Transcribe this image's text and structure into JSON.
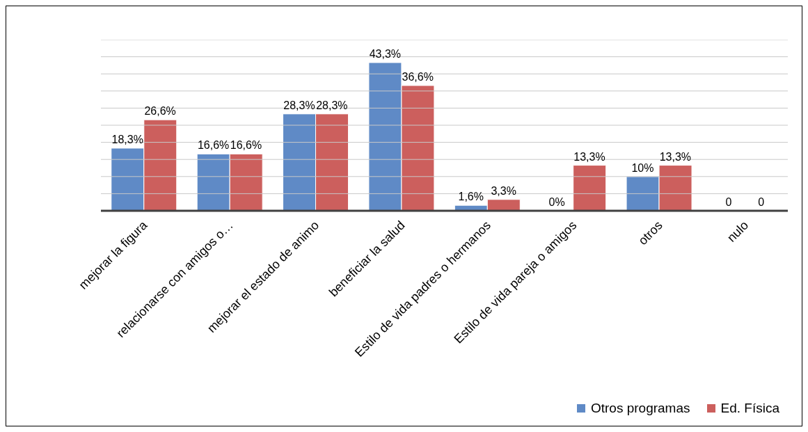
{
  "chart_data": {
    "type": "bar",
    "categories": [
      "mejorar la figura",
      "relacionarse con amigos o…",
      "mejorar el estado de animo",
      "beneficiar la salud",
      "Estilo de vida padres o hermanos",
      "Estilo de vida pareja o amigos",
      "otros",
      "nulo"
    ],
    "series": [
      {
        "name": "Otros programas",
        "color": "#5f8ac6",
        "values": [
          18.3,
          16.6,
          28.3,
          43.3,
          1.6,
          0,
          10,
          0
        ],
        "value_labels": [
          "18,3%",
          "16,6%",
          "28,3%",
          "43,3%",
          "1,6%",
          "0%",
          "10%",
          "0"
        ]
      },
      {
        "name": "Ed. Física",
        "color": "#cc5f5d",
        "values": [
          26.6,
          16.6,
          28.3,
          36.6,
          3.3,
          13.3,
          13.3,
          0
        ],
        "value_labels": [
          "26,6%",
          "16,6%",
          "28,3%",
          "36,6%",
          "3,3%",
          "13,3%",
          "13,3%",
          "0"
        ]
      }
    ],
    "ylim": [
      0,
      50
    ],
    "yticks": [
      {
        "value": 0,
        "label": null
      },
      {
        "value": 5,
        "label": null
      },
      {
        "value": 10,
        "label": null
      },
      {
        "value": 15,
        "label": null
      },
      {
        "value": 20,
        "label": null
      },
      {
        "value": 25,
        "label": null
      },
      {
        "value": 30,
        "label": null
      },
      {
        "value": 35,
        "label": null
      },
      {
        "value": 40,
        "label": null
      },
      {
        "value": 45,
        "label": null
      },
      {
        "value": 50,
        "label": null
      }
    ],
    "tick_labels": "x",
    "grid": "y",
    "legend": "bottom right"
  }
}
